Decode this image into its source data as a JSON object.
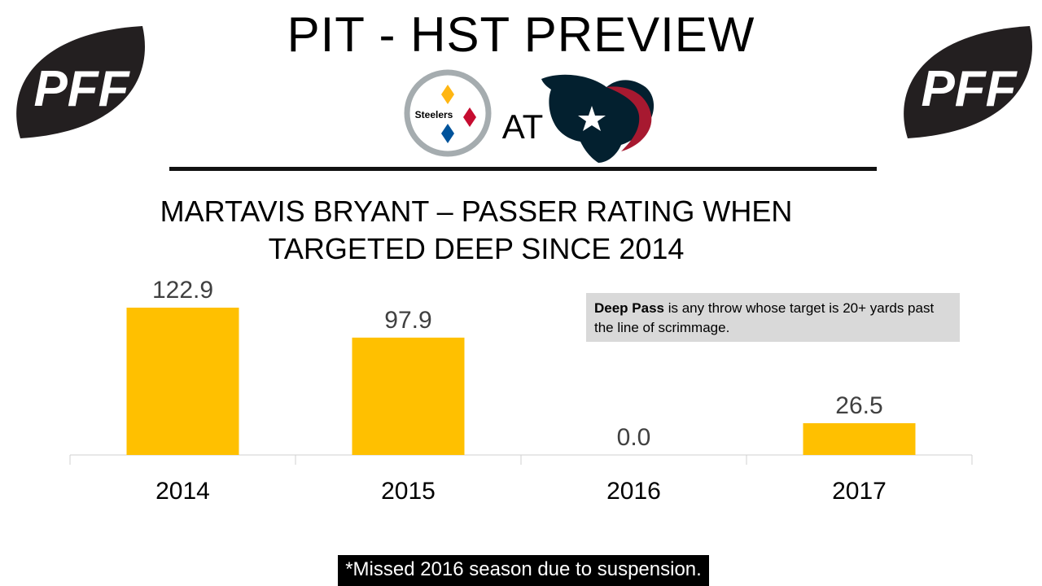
{
  "header": {
    "title": "PIT - HST PREVIEW",
    "logo_text": "PFF",
    "at_label": "AT",
    "home_logo_text": "Steelers"
  },
  "colors": {
    "bar": "#FFC000",
    "football": "#231f20",
    "note_bg": "#d9d9d9",
    "footnote_bg": "#000000",
    "steelers_yellow": "#FFB612",
    "steelers_red": "#C60C30",
    "steelers_blue": "#00539B",
    "texans_navy": "#03202F",
    "texans_red": "#A71930"
  },
  "note": {
    "bold": "Deep Pass",
    "rest": " is any throw whose target is 20+ yards past the line of scrimmage."
  },
  "footnote": "*Missed 2016 season due to suspension.",
  "chart_data": {
    "type": "bar",
    "title": "MARTAVIS BRYANT – PASSER RATING WHEN TARGETED DEEP SINCE 2014",
    "title_line1": "MARTAVIS BRYANT – PASSER RATING WHEN",
    "title_line2": "TARGETED DEEP SINCE 2014",
    "categories": [
      "2014",
      "2015",
      "2016",
      "2017"
    ],
    "values": [
      122.9,
      97.9,
      0.0,
      26.5
    ],
    "data_labels": [
      "122.9",
      "97.9",
      "0.0",
      "26.5"
    ],
    "xlabel": "",
    "ylabel": "",
    "ylim": [
      0,
      122.9
    ],
    "grid": false,
    "legend": "none"
  }
}
